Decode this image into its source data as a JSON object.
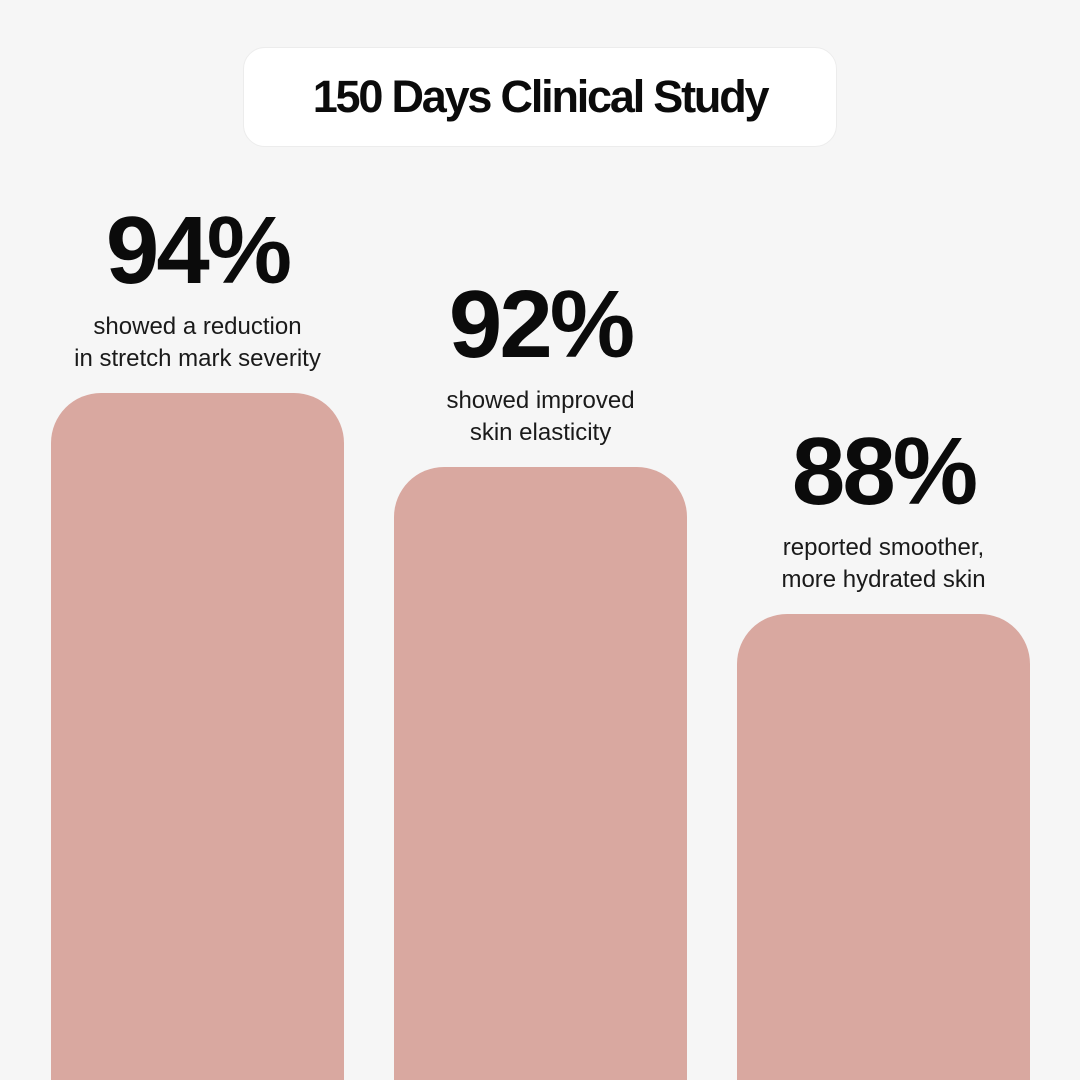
{
  "title": "150 Days Clinical Study",
  "colors": {
    "background": "#f6f6f6",
    "bar": "#d9a8a0",
    "text": "#0b0b0b",
    "pill": "#ffffff"
  },
  "chart_data": {
    "type": "bar",
    "title": "150 Days Clinical Study",
    "categories": [
      "showed a reduction in stretch mark severity",
      "showed improved skin elasticity",
      "reported smoother, more hydrated skin"
    ],
    "values": [
      94,
      92,
      88
    ],
    "value_labels": [
      "94%",
      "92%",
      "88%"
    ],
    "caption_lines": [
      [
        "showed a reduction",
        "in stretch mark severity"
      ],
      [
        "showed improved",
        "skin elasticity"
      ],
      [
        "reported smoother,",
        "more hydrated skin"
      ]
    ],
    "xlabel": "",
    "ylabel": "",
    "grid": false,
    "legend": "none"
  }
}
